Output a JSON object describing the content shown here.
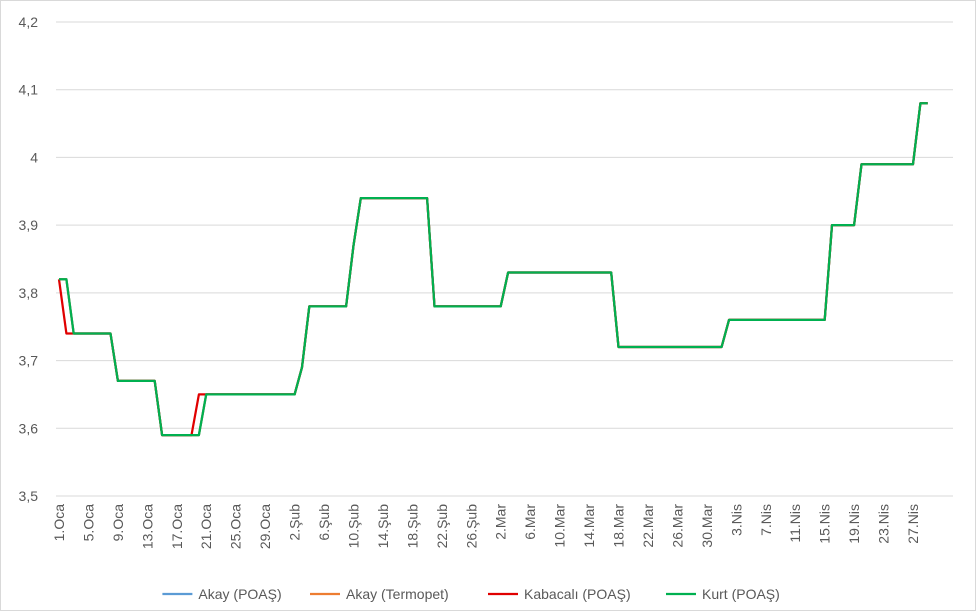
{
  "chart_data": {
    "type": "line",
    "categories": [
      "1.Oca",
      null,
      null,
      null,
      "5.Oca",
      null,
      null,
      null,
      "9.Oca",
      null,
      null,
      null,
      "13.Oca",
      null,
      null,
      null,
      "17.Oca",
      null,
      null,
      null,
      "21.Oca",
      null,
      null,
      null,
      "25.Oca",
      null,
      null,
      null,
      "29.Oca",
      null,
      null,
      null,
      "2.Şub",
      null,
      null,
      null,
      "6.Şub",
      null,
      null,
      null,
      "10.Şub",
      null,
      null,
      null,
      "14.Şub",
      null,
      null,
      null,
      "18.Şub",
      null,
      null,
      null,
      "22.Şub",
      null,
      null,
      null,
      "26.Şub",
      null,
      null,
      null,
      "2.Mar",
      null,
      null,
      null,
      "6.Mar",
      null,
      null,
      null,
      "10.Mar",
      null,
      null,
      null,
      "14.Mar",
      null,
      null,
      null,
      "18.Mar",
      null,
      null,
      null,
      "22.Mar",
      null,
      null,
      null,
      "26.Mar",
      null,
      null,
      null,
      "30.Mar",
      null,
      null,
      null,
      "3.Nis",
      null,
      null,
      null,
      "7.Nis",
      null,
      null,
      null,
      "11.Nis",
      null,
      null,
      null,
      "15.Nis",
      null,
      null,
      null,
      "19.Nis",
      null,
      null,
      null,
      "23.Nis",
      null,
      null,
      null,
      "27.Nis",
      null,
      null,
      null
    ],
    "series": [
      {
        "name": "Akay (POAŞ)",
        "color": "#5b9bd5",
        "values": [
          3.82,
          3.82,
          3.74,
          3.74,
          3.74,
          3.74,
          3.74,
          3.74,
          3.67,
          3.67,
          3.67,
          3.67,
          3.67,
          3.67,
          3.59,
          3.59,
          3.59,
          3.59,
          3.59,
          3.59,
          3.65,
          3.65,
          3.65,
          3.65,
          3.65,
          3.65,
          3.65,
          3.65,
          3.65,
          3.65,
          3.65,
          3.65,
          3.65,
          3.69,
          3.78,
          3.78,
          3.78,
          3.78,
          3.78,
          3.78,
          3.87,
          3.94,
          3.94,
          3.94,
          3.94,
          3.94,
          3.94,
          3.94,
          3.94,
          3.94,
          3.94,
          3.78,
          3.78,
          3.78,
          3.78,
          3.78,
          3.78,
          3.78,
          3.78,
          3.78,
          3.78,
          3.83,
          3.83,
          3.83,
          3.83,
          3.83,
          3.83,
          3.83,
          3.83,
          3.83,
          3.83,
          3.83,
          3.83,
          3.83,
          3.83,
          3.83,
          3.72,
          3.72,
          3.72,
          3.72,
          3.72,
          3.72,
          3.72,
          3.72,
          3.72,
          3.72,
          3.72,
          3.72,
          3.72,
          3.72,
          3.72,
          3.76,
          3.76,
          3.76,
          3.76,
          3.76,
          3.76,
          3.76,
          3.76,
          3.76,
          3.76,
          3.76,
          3.76,
          3.76,
          3.76,
          3.9,
          3.9,
          3.9,
          3.9,
          3.99,
          3.99,
          3.99,
          3.99,
          3.99,
          3.99,
          3.99,
          3.99,
          4.08,
          4.08,
          null
        ]
      },
      {
        "name": "Akay (Termopet)",
        "color": "#ed7d31",
        "values": [
          3.82,
          3.82,
          3.74,
          3.74,
          3.74,
          3.74,
          3.74,
          3.74,
          3.67,
          3.67,
          3.67,
          3.67,
          3.67,
          3.67,
          3.59,
          3.59,
          3.59,
          3.59,
          3.59,
          3.59,
          3.65,
          3.65,
          3.65,
          3.65,
          3.65,
          3.65,
          3.65,
          3.65,
          3.65,
          3.65,
          3.65,
          3.65,
          3.65,
          3.69,
          3.78,
          3.78,
          3.78,
          3.78,
          3.78,
          3.78,
          3.87,
          3.94,
          3.94,
          3.94,
          3.94,
          3.94,
          3.94,
          3.94,
          3.94,
          3.94,
          3.94,
          3.78,
          3.78,
          3.78,
          3.78,
          3.78,
          3.78,
          3.78,
          3.78,
          3.78,
          3.78,
          3.83,
          3.83,
          3.83,
          3.83,
          3.83,
          3.83,
          3.83,
          3.83,
          3.83,
          3.83,
          3.83,
          3.83,
          3.83,
          3.83,
          3.83,
          3.72,
          3.72,
          3.72,
          3.72,
          3.72,
          3.72,
          3.72,
          3.72,
          3.72,
          3.72,
          3.72,
          3.72,
          3.72,
          3.72,
          3.72,
          3.76,
          3.76,
          3.76,
          3.76,
          3.76,
          3.76,
          3.76,
          3.76,
          3.76,
          3.76,
          3.76,
          3.76,
          3.76,
          3.76,
          3.9,
          3.9,
          3.9,
          3.9,
          3.99,
          3.99,
          3.99,
          3.99,
          3.99,
          3.99,
          3.99,
          3.99,
          4.08,
          4.08,
          null
        ]
      },
      {
        "name": "Kabacalı (POAŞ)",
        "color": "#e00000",
        "values": [
          3.82,
          3.74,
          3.74,
          3.74,
          3.74,
          3.74,
          3.74,
          3.74,
          3.67,
          3.67,
          3.67,
          3.67,
          3.67,
          3.67,
          3.59,
          3.59,
          3.59,
          3.59,
          3.59,
          3.65,
          3.65,
          3.65,
          3.65,
          3.65,
          3.65,
          3.65,
          3.65,
          3.65,
          3.65,
          3.65,
          3.65,
          3.65,
          3.65,
          3.69,
          3.78,
          3.78,
          3.78,
          3.78,
          3.78,
          3.78,
          3.87,
          3.94,
          3.94,
          3.94,
          3.94,
          3.94,
          3.94,
          3.94,
          3.94,
          3.94,
          3.94,
          3.78,
          3.78,
          3.78,
          3.78,
          3.78,
          3.78,
          3.78,
          3.78,
          3.78,
          3.78,
          3.83,
          3.83,
          3.83,
          3.83,
          3.83,
          3.83,
          3.83,
          3.83,
          3.83,
          3.83,
          3.83,
          3.83,
          3.83,
          3.83,
          3.83,
          3.72,
          3.72,
          3.72,
          3.72,
          3.72,
          3.72,
          3.72,
          3.72,
          3.72,
          3.72,
          3.72,
          3.72,
          3.72,
          3.72,
          3.72,
          3.76,
          3.76,
          3.76,
          3.76,
          3.76,
          3.76,
          3.76,
          3.76,
          3.76,
          3.76,
          3.76,
          3.76,
          3.76,
          3.76,
          3.9,
          3.9,
          3.9,
          3.9,
          3.99,
          3.99,
          3.99,
          3.99,
          3.99,
          3.99,
          3.99,
          3.99,
          4.08,
          4.08,
          null
        ]
      },
      {
        "name": "Kurt (POAŞ)",
        "color": "#00b050",
        "values": [
          3.82,
          3.82,
          3.74,
          3.74,
          3.74,
          3.74,
          3.74,
          3.74,
          3.67,
          3.67,
          3.67,
          3.67,
          3.67,
          3.67,
          3.59,
          3.59,
          3.59,
          3.59,
          3.59,
          3.59,
          3.65,
          3.65,
          3.65,
          3.65,
          3.65,
          3.65,
          3.65,
          3.65,
          3.65,
          3.65,
          3.65,
          3.65,
          3.65,
          3.69,
          3.78,
          3.78,
          3.78,
          3.78,
          3.78,
          3.78,
          3.87,
          3.94,
          3.94,
          3.94,
          3.94,
          3.94,
          3.94,
          3.94,
          3.94,
          3.94,
          3.94,
          3.78,
          3.78,
          3.78,
          3.78,
          3.78,
          3.78,
          3.78,
          3.78,
          3.78,
          3.78,
          3.83,
          3.83,
          3.83,
          3.83,
          3.83,
          3.83,
          3.83,
          3.83,
          3.83,
          3.83,
          3.83,
          3.83,
          3.83,
          3.83,
          3.83,
          3.72,
          3.72,
          3.72,
          3.72,
          3.72,
          3.72,
          3.72,
          3.72,
          3.72,
          3.72,
          3.72,
          3.72,
          3.72,
          3.72,
          3.72,
          3.76,
          3.76,
          3.76,
          3.76,
          3.76,
          3.76,
          3.76,
          3.76,
          3.76,
          3.76,
          3.76,
          3.76,
          3.76,
          3.76,
          3.9,
          3.9,
          3.9,
          3.9,
          3.99,
          3.99,
          3.99,
          3.99,
          3.99,
          3.99,
          3.99,
          3.99,
          4.08,
          4.08,
          null
        ]
      }
    ],
    "ylim": [
      3.5,
      4.2
    ],
    "yticks": [
      {
        "value": 3.5,
        "label": "3,5"
      },
      {
        "value": 3.6,
        "label": "3,6"
      },
      {
        "value": 3.7,
        "label": "3,7"
      },
      {
        "value": 3.8,
        "label": "3,8"
      },
      {
        "value": 3.9,
        "label": "3,9"
      },
      4,
      {
        "value": 4.1,
        "label": "4,1"
      },
      {
        "value": 4.2,
        "label": "4,2"
      }
    ],
    "grid": true,
    "legend": "bottom"
  }
}
